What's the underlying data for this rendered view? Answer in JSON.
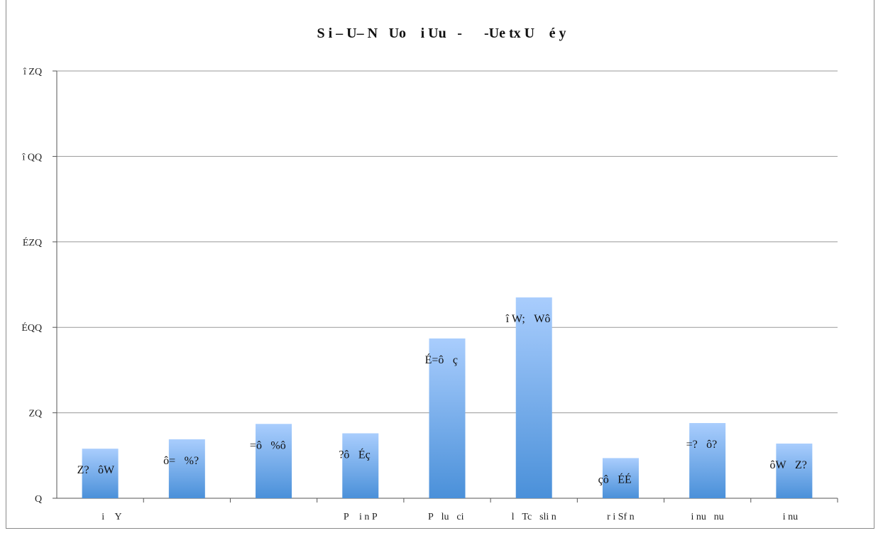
{
  "chart_data": {
    "type": "bar",
    "title": "􏰃S i – U– N􏰅Uo 􏰂i Uu􏰅-􏰅􏰅-Ue tx U 􏰅é y􏰃",
    "xlabel": "",
    "ylabel": "",
    "ylim": [
      0,
      500
    ],
    "yticks": [
      "Q􏰃",
      "ZQ􏰃",
      "ÉQQ􏰃",
      "ÉZQ􏰃",
      "î QQ􏰃",
      "î ZQ􏰃"
    ],
    "grid": true,
    "legend": "none",
    "categories": [
      "􏰃􏰃􏰃􏰃i 􏰃Y􏰃",
      "􏰃􏰃􏰃􏰃",
      "􏰃 􏰃􏰃",
      "􏰃P􏰃 i n P􏰃",
      "􏰃P􏰃lu􏰃ci 􏰃",
      "􏰃l􏰃Tc􏰃sli n􏰃",
      "􏰃r i Sf n􏰃",
      "􏰃i nu􏰃nu􏰃",
      "􏰃i nu􏰃􏰃"
    ],
    "values": [
      58,
      69,
      87,
      76,
      187,
      235,
      47,
      88,
      64
    ],
    "data_labels": [
      "Z?􏰃ôW􏰃",
      "ô=􏰃%? 􏰃",
      "=ô􏰃%ô 􏰃",
      "?ô􏰃Éç 􏰃",
      "É=ô􏰃ç 􏰃",
      "î W;􏰃Wô 􏰃",
      "çô􏰃ÉÉ 􏰃",
      "=?􏰃ô? 􏰃",
      "ôW􏰃Z? 􏰃"
    ],
    "bar_color_top": "#a9cdfd",
    "bar_color_bottom": "#4a90d9",
    "grid_color": "#9a9a9a",
    "corner_mark": "􏰃"
  }
}
